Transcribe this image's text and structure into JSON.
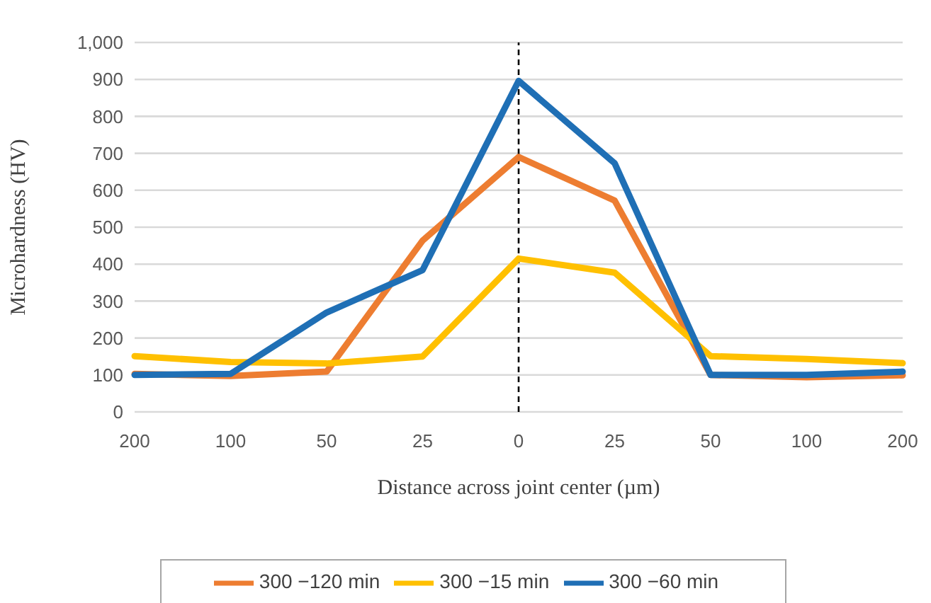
{
  "chart_data": {
    "type": "line",
    "xlabel": "Distance across joint center (µm)",
    "ylabel": "Microhardness (HV)",
    "categories": [
      "200",
      "100",
      "50",
      "25",
      "0",
      "25",
      "50",
      "100",
      "200"
    ],
    "series": [
      {
        "name": "300  −120 min",
        "color": "#ed7d31",
        "values": [
          103,
          97,
          109,
          464,
          690,
          572,
          100,
          94,
          99
        ]
      },
      {
        "name": "300  −15 min",
        "color": "#ffc000",
        "values": [
          151,
          135,
          131,
          150,
          415,
          377,
          151,
          143,
          132
        ]
      },
      {
        "name": "300  −60 min",
        "color": "#1f6fb5",
        "values": [
          100,
          103,
          269,
          384,
          896,
          673,
          100,
          100,
          109
        ]
      }
    ],
    "ylim": [
      0,
      1000
    ],
    "yticks": [
      0,
      100,
      200,
      300,
      400,
      500,
      600,
      700,
      800,
      900,
      {
        "value": 1000,
        "label": "1,000"
      }
    ],
    "grid": "y",
    "legend": "bottom",
    "marker": "none",
    "line_style": "solid",
    "ref_lines": [
      {
        "axis": "x",
        "value": "0",
        "color": "#000000",
        "line_style": "dashed"
      }
    ]
  }
}
